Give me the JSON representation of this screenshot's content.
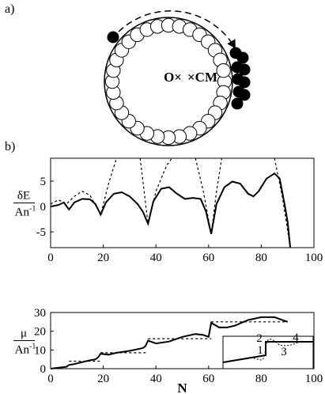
{
  "diagram": {
    "label": "a)",
    "origin": "O×",
    "center_of_mass": "×CM"
  },
  "chart_data": [
    {
      "type": "line",
      "label": "b)",
      "ylabel": {
        "numerator": "δE",
        "denominator": "An",
        "exponent": "-1"
      },
      "xlim": [
        0,
        100
      ],
      "ylim": [
        -8.1,
        9.5
      ],
      "xticks": [
        0,
        20,
        40,
        60,
        80,
        100
      ],
      "yticks": [
        -5,
        0,
        5
      ],
      "series": [
        {
          "color": "#000",
          "style": "solid",
          "x": [
            0,
            3,
            5,
            7,
            9,
            12,
            15,
            17,
            19,
            21,
            24,
            27,
            30,
            33,
            35,
            37,
            39,
            42,
            45,
            48,
            51,
            54,
            57,
            59,
            61,
            63,
            66,
            69,
            72,
            75,
            77,
            79,
            82,
            85,
            87,
            89,
            90,
            91
          ],
          "values": [
            0,
            0.3,
            0.8,
            -0.6,
            0.8,
            1.5,
            1.4,
            0.5,
            -1.6,
            0.8,
            2.5,
            2.8,
            2,
            0.5,
            -1,
            -3.4,
            1,
            3.5,
            3.8,
            2.5,
            1.5,
            1.7,
            1.5,
            -1,
            -5.4,
            0.5,
            3.8,
            4.9,
            4.5,
            2.5,
            2,
            3,
            5.5,
            6.5,
            5.5,
            0,
            -3,
            -8
          ]
        },
        {
          "color": "#000",
          "style": "dashed",
          "x": [
            0,
            3,
            6,
            9,
            12,
            15,
            19,
            22,
            25,
            30,
            34,
            37,
            40,
            44,
            46,
            50,
            55,
            58,
            61,
            63,
            65,
            75,
            85,
            88,
            91
          ],
          "values": [
            0.5,
            1.3,
            0.5,
            2,
            3,
            2.2,
            -1.6,
            4.5,
            9.5,
            null,
            9.5,
            -3.4,
            3,
            8,
            9.5,
            null,
            9.5,
            3,
            -5.4,
            3,
            9.5,
            null,
            9.5,
            2,
            -8
          ]
        }
      ]
    },
    {
      "type": "line",
      "xlabel": "N",
      "ylabel": {
        "numerator": "μ",
        "denominator": "An",
        "exponent": "-1"
      },
      "xlim": [
        0,
        100
      ],
      "ylim": [
        0,
        30
      ],
      "xticks": [
        0,
        20,
        40,
        60,
        80,
        100
      ],
      "yticks": [
        0,
        10,
        20,
        30
      ],
      "inset_labels": [
        "1",
        "2",
        "3",
        "4"
      ],
      "series": [
        {
          "color": "#000",
          "style": "solid",
          "x": [
            0,
            3,
            6,
            7,
            9,
            12,
            15,
            17,
            18,
            19,
            22,
            25,
            30,
            35,
            36,
            37,
            40,
            45,
            50,
            55,
            58,
            60,
            61,
            64,
            67,
            70,
            75,
            80,
            85,
            90
          ],
          "values": [
            0,
            0.5,
            1,
            2,
            2.5,
            3.5,
            4.5,
            5,
            6,
            8,
            7.5,
            8.5,
            9.5,
            11,
            12,
            15,
            13.5,
            14.5,
            17,
            18.5,
            18,
            17,
            24.5,
            22,
            22,
            23,
            26,
            27.5,
            27.5,
            25
          ]
        },
        {
          "color": "#000",
          "style": "dashed",
          "x": [
            7,
            19,
            19,
            19,
            37,
            37,
            37,
            61,
            61,
            61,
            90
          ],
          "values": [
            4,
            4,
            null,
            8.5,
            8.5,
            null,
            16,
            16,
            null,
            25,
            25
          ]
        }
      ]
    }
  ]
}
